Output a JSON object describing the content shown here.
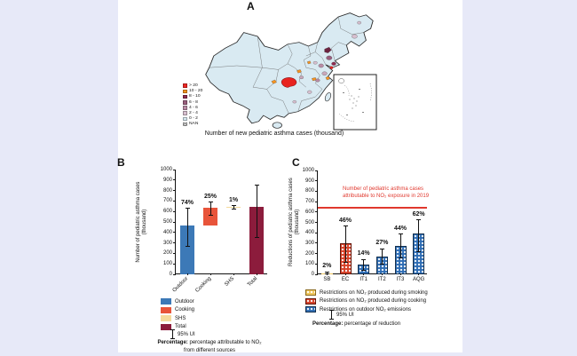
{
  "page": {
    "background": "#E7E9F8",
    "canvas_background": "#FFFFFF"
  },
  "panel_a": {
    "label": "A",
    "caption": "Number of  new pediatric asthma cases (thousand)",
    "legend": [
      {
        "label": "> 20",
        "color": "#EE2724"
      },
      {
        "label": "10 - 20",
        "color": "#F8941E"
      },
      {
        "label": "8 - 10",
        "color": "#8F2C50"
      },
      {
        "label": "6 - 8",
        "color": "#9A5F7E"
      },
      {
        "label": "4 - 6",
        "color": "#B98CA6"
      },
      {
        "label": "2 - 4",
        "color": "#D8C0D0"
      },
      {
        "label": "0 - 2",
        "color": "#D9EAF2"
      },
      {
        "label": "NAN",
        "color": "hatch"
      }
    ]
  },
  "chart_data": [
    {
      "id": "panel_b",
      "type": "bar",
      "subtype": "waterfall",
      "title": "",
      "ylabel": "Number of pediatric asthma cases (thousand)",
      "ylim": [
        0,
        1000
      ],
      "ytick_step": 100,
      "xtick_rotation": -45,
      "categories": [
        "Outdoor",
        "Cooking",
        "SHS",
        "Total"
      ],
      "values": [
        470,
        165,
        10,
        640
      ],
      "segments": [
        [
          0,
          470
        ],
        [
          470,
          635
        ],
        [
          635,
          645
        ],
        [
          0,
          640
        ]
      ],
      "error_bars": [
        [
          265,
          630
        ],
        [
          560,
          690
        ],
        [
          620,
          655
        ],
        [
          355,
          850
        ]
      ],
      "percent_labels": [
        "74%",
        "25%",
        "1%",
        ""
      ],
      "colors": [
        "#3C79B7",
        "#E8543A",
        "#F5DA9C",
        "#8C1C3C"
      ]
    },
    {
      "id": "panel_c",
      "type": "bar",
      "title": "",
      "ylabel": "Reductions of pediatric asthma cases (thousand)",
      "ylim": [
        0,
        1000
      ],
      "ytick_step": 100,
      "categories": [
        "SB",
        "EC",
        "IT1",
        "IT2",
        "IT3",
        "AQG"
      ],
      "values": [
        10,
        295,
        90,
        170,
        275,
        395
      ],
      "error_bars": [
        [
          2,
          22
        ],
        [
          115,
          465
        ],
        [
          35,
          145
        ],
        [
          95,
          245
        ],
        [
          160,
          385
        ],
        [
          220,
          525
        ]
      ],
      "percent_labels": [
        "2%",
        "46%",
        "14%",
        "27%",
        "44%",
        "62%"
      ],
      "patterns": [
        "dot-yellow",
        "dot-red",
        "dot-blue",
        "dot-blue",
        "dot-blue",
        "dot-blue"
      ],
      "ref_line": {
        "value": 640,
        "color": "#E0382E",
        "label": "Number of pediatric asthma cases attributable to NO₂ exposure in 2019"
      }
    }
  ],
  "panel_b": {
    "label": "B",
    "ylabel_line1": "Number of pediatric asthma cases",
    "ylabel_line2": "(thousand)",
    "legend": [
      {
        "label": "Outdoor",
        "color": "#3C79B7"
      },
      {
        "label": "Cooking",
        "color": "#E8543A"
      },
      {
        "label": "SHS",
        "color": "#F5DA9C"
      },
      {
        "label": "Total",
        "color": "#8C1C3C"
      }
    ],
    "ui_label": "95% UI",
    "note_bold": "Percentage:",
    "note_text": " percentage attributable to NO₂",
    "note_line2": "from different sources"
  },
  "panel_c": {
    "label": "C",
    "ylabel_line1": "Reductions of pediatric asthma cases",
    "ylabel_line2": "(thousand)",
    "annotation_line1": "Number of pediatric asthma cases",
    "annotation_line2": "attributable to NO₂ exposure in 2019",
    "annotation_color": "#E0382E",
    "legend": [
      {
        "label": "Restrictions on NO₂ produced during smoking",
        "pattern": "dot-yellow"
      },
      {
        "label": "Restrictions on NO₂ produced during cooking",
        "pattern": "dot-red"
      },
      {
        "label": "Restrictions on outdoor NO₂ emissions",
        "pattern": "dot-blue"
      }
    ],
    "ui_label": "95% UI",
    "note_bold": "Percentage:",
    "note_text": " percentage of reduction"
  }
}
